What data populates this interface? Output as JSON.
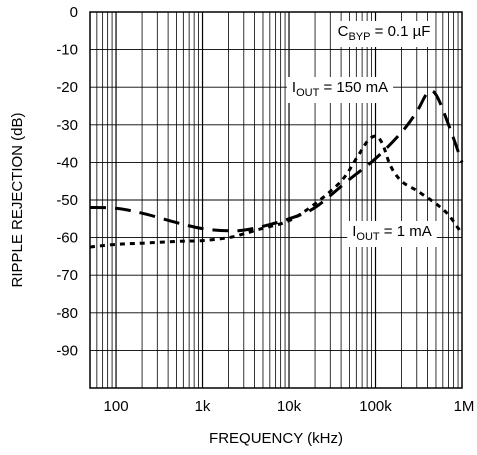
{
  "chart_data": {
    "type": "line",
    "x_scale": "log",
    "xlim": [
      50,
      1000000
    ],
    "ylim": [
      -100,
      0
    ],
    "xlabel": "FREQUENCY (kHz)",
    "ylabel": "RIPPLE REJECTION (dB)",
    "x_ticks": [
      {
        "value": 100,
        "label": "100"
      },
      {
        "value": 1000,
        "label": "1k"
      },
      {
        "value": 10000,
        "label": "10k"
      },
      {
        "value": 100000,
        "label": "100k"
      },
      {
        "value": 1000000,
        "label": "1M"
      }
    ],
    "y_ticks": [
      {
        "value": 0,
        "label": "0"
      },
      {
        "value": -10,
        "label": "-10"
      },
      {
        "value": -20,
        "label": "-20"
      },
      {
        "value": -30,
        "label": "-30"
      },
      {
        "value": -40,
        "label": "-40"
      },
      {
        "value": -50,
        "label": "-50"
      },
      {
        "value": -60,
        "label": "-60"
      },
      {
        "value": -70,
        "label": "-70"
      },
      {
        "value": -80,
        "label": "-80"
      },
      {
        "value": -90,
        "label": "-90"
      }
    ],
    "grid": true,
    "condition": {
      "prefix": "C",
      "sub": "BYP",
      "suffix": " = 0.1 µF"
    },
    "series": [
      {
        "label": {
          "prefix": "I",
          "sub": "OUT",
          "suffix": " = 150 mA"
        },
        "dash": "long-dash",
        "x": [
          50,
          100,
          200,
          500,
          1000,
          2000,
          3000,
          5000,
          10000,
          20000,
          50000,
          100000,
          200000,
          300000,
          400000,
          500000,
          700000,
          1000000
        ],
        "y": [
          -52,
          -52.2,
          -53.5,
          -56,
          -57.6,
          -58.2,
          -58,
          -57,
          -55,
          -52,
          -44.5,
          -39,
          -32,
          -26.5,
          -21.5,
          -22,
          -30,
          -40
        ]
      },
      {
        "label": {
          "prefix": "I",
          "sub": "OUT",
          "suffix": " = 1 mA"
        },
        "dash": "short-dash",
        "x": [
          50,
          100,
          200,
          500,
          1000,
          2000,
          3000,
          5000,
          10000,
          20000,
          40000,
          60000,
          80000,
          100000,
          120000,
          150000,
          200000,
          300000,
          500000,
          700000,
          1000000
        ],
        "y": [
          -62.5,
          -61.8,
          -61.5,
          -61,
          -60.8,
          -60,
          -59,
          -57.5,
          -55.5,
          -51,
          -45,
          -39,
          -34.5,
          -33,
          -35,
          -41,
          -45,
          -47.5,
          -51,
          -54,
          -59
        ]
      }
    ]
  }
}
